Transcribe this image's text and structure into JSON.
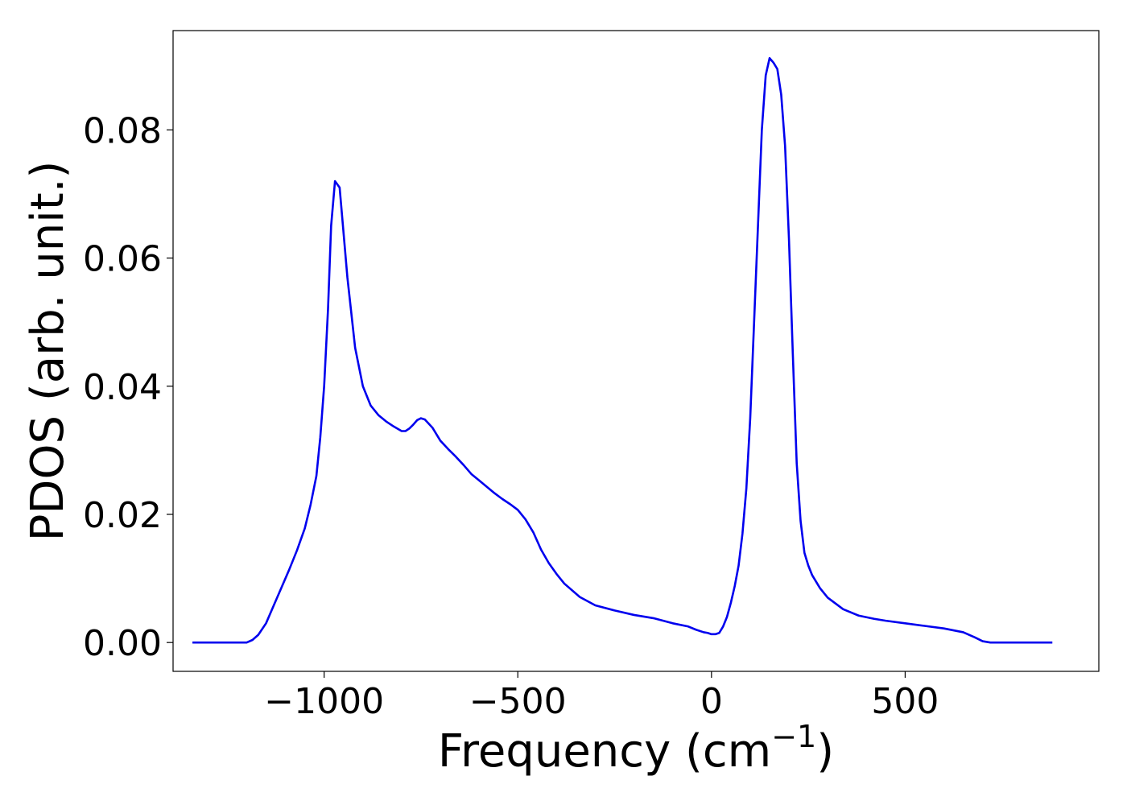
{
  "chart_data": {
    "type": "line",
    "title": "",
    "xlabel": "Frequency (cm",
    "xlabel_superscript": "−1",
    "xlabel_close": ")",
    "ylabel": "PDOS (arb. unit.)",
    "xlim": [
      -1390,
      1000
    ],
    "ylim": [
      -0.0045,
      0.0955
    ],
    "xticks": [
      -1000,
      -500,
      0,
      500
    ],
    "xtick_labels": [
      "−1000",
      "−500",
      "0",
      "500"
    ],
    "yticks": [
      0.0,
      0.02,
      0.04,
      0.06,
      0.08
    ],
    "ytick_labels": [
      "0.00",
      "0.02",
      "0.04",
      "0.06",
      "0.08"
    ],
    "grid": false,
    "series": [
      {
        "color": "#0000ee",
        "x": [
          -1340,
          -1250,
          -1200,
          -1185,
          -1170,
          -1150,
          -1130,
          -1110,
          -1090,
          -1070,
          -1050,
          -1035,
          -1020,
          -1010,
          -1000,
          -990,
          -982,
          -972,
          -960,
          -950,
          -940,
          -920,
          -900,
          -880,
          -860,
          -840,
          -820,
          -800,
          -790,
          -780,
          -770,
          -760,
          -750,
          -740,
          -720,
          -700,
          -680,
          -660,
          -640,
          -620,
          -600,
          -560,
          -540,
          -520,
          -500,
          -480,
          -460,
          -440,
          -420,
          -400,
          -380,
          -340,
          -300,
          -250,
          -200,
          -150,
          -100,
          -60,
          -40,
          -20,
          -10,
          0,
          10,
          20,
          30,
          40,
          50,
          60,
          70,
          80,
          90,
          100,
          110,
          120,
          130,
          140,
          150,
          160,
          170,
          180,
          190,
          200,
          210,
          220,
          230,
          240,
          250,
          260,
          280,
          300,
          340,
          380,
          420,
          450,
          500,
          550,
          600,
          650,
          680,
          700,
          720,
          760,
          880
        ],
        "y": [
          0.0,
          0.0,
          0.0,
          0.0004,
          0.0012,
          0.003,
          0.0058,
          0.0086,
          0.0114,
          0.0144,
          0.0178,
          0.0215,
          0.026,
          0.032,
          0.04,
          0.052,
          0.065,
          0.072,
          0.071,
          0.064,
          0.057,
          0.046,
          0.04,
          0.037,
          0.0355,
          0.0345,
          0.0337,
          0.033,
          0.033,
          0.0334,
          0.034,
          0.0347,
          0.035,
          0.0348,
          0.0335,
          0.0315,
          0.0302,
          0.029,
          0.0277,
          0.0263,
          0.0253,
          0.0233,
          0.0224,
          0.0216,
          0.0207,
          0.0192,
          0.0172,
          0.0145,
          0.0124,
          0.0107,
          0.0092,
          0.0071,
          0.0058,
          0.005,
          0.0043,
          0.0038,
          0.003,
          0.0025,
          0.002,
          0.0016,
          0.0015,
          0.0013,
          0.0013,
          0.0015,
          0.0025,
          0.004,
          0.0062,
          0.0088,
          0.012,
          0.017,
          0.024,
          0.035,
          0.05,
          0.065,
          0.08,
          0.0885,
          0.0912,
          0.0905,
          0.0895,
          0.0855,
          0.0775,
          0.063,
          0.045,
          0.028,
          0.019,
          0.014,
          0.012,
          0.0105,
          0.0085,
          0.007,
          0.0052,
          0.0042,
          0.0037,
          0.0034,
          0.003,
          0.0026,
          0.0022,
          0.0016,
          0.0008,
          0.0002,
          0.0,
          0.0,
          0.0
        ]
      }
    ]
  }
}
